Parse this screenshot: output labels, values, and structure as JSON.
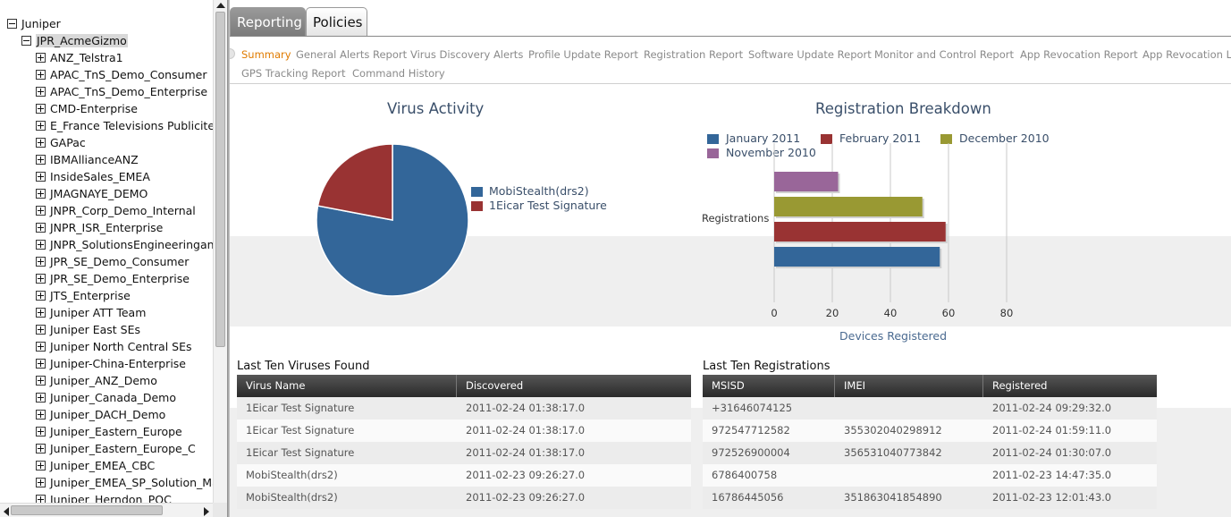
{
  "tree": {
    "root": "Juniper",
    "selected": "JPR_AcmeGizmo",
    "children": [
      "ANZ_Telstra1",
      "APAC_TnS_Demo_Consumer",
      "APAC_TnS_Demo_Enterprise",
      "CMD-Enterprise",
      "E_France Televisions Publicite",
      "GAPac",
      "IBMAllianceANZ",
      "InsideSales_EMEA",
      "JMAGNAYE_DEMO",
      "JNPR_Corp_Demo_Internal",
      "JNPR_ISR_Enterprise",
      "JNPR_SolutionsEngineeringand",
      "JPR_SE_Demo_Consumer",
      "JPR_SE_Demo_Enterprise",
      "JTS_Enterprise",
      "Juniper ATT Team",
      "Juniper East SEs",
      "Juniper North Central SEs",
      "Juniper-China-Enterprise",
      "Juniper_ANZ_Demo",
      "Juniper_Canada_Demo",
      "Juniper_DACH_Demo",
      "Juniper_Eastern_Europe",
      "Juniper_Eastern_Europe_C",
      "Juniper_EMEA_CBC",
      "Juniper_EMEA_SP_Solution_Ma",
      "Juniper_Herndon_POC"
    ]
  },
  "tabs": [
    "Reporting",
    "Policies"
  ],
  "subnav": {
    "row1": [
      "Summary",
      "General Alerts Report",
      "Virus Discovery Alerts",
      "Profile Update Report",
      "Registration Report",
      "Software Update Report",
      "Monitor and Control Report",
      "App Revocation Report",
      "App Revocation Li"
    ],
    "row2": [
      "GPS Tracking Report",
      "Command History"
    ],
    "active": "Summary"
  },
  "colors": {
    "blue": "#336699",
    "red": "#993333",
    "olive": "#999933",
    "purple": "#996699",
    "accent": "#e07b00"
  },
  "chart_data": [
    {
      "type": "pie",
      "title": "Virus Activity",
      "labels": [
        "MobiStealth(drs2)",
        "1Eicar Test Signature"
      ],
      "values": [
        78,
        22
      ],
      "colors": [
        "#336699",
        "#993333"
      ],
      "legend": "right"
    },
    {
      "type": "bar",
      "orientation": "horizontal",
      "title": "Registration Breakdown",
      "categories": [
        "Registrations"
      ],
      "series": [
        {
          "name": "January 2011",
          "values": [
            57
          ],
          "color": "#336699"
        },
        {
          "name": "February 2011",
          "values": [
            59
          ],
          "color": "#993333"
        },
        {
          "name": "December 2010",
          "values": [
            51
          ],
          "color": "#999933"
        },
        {
          "name": "November 2010",
          "values": [
            22
          ],
          "color": "#996699"
        }
      ],
      "xlabel": "Devices Registered",
      "ylabel": "",
      "xlim": [
        0,
        80
      ],
      "xticks": [
        0,
        20,
        40,
        60,
        80
      ],
      "grid": true,
      "legend": "top"
    }
  ],
  "viruses": {
    "title": "Last Ten Viruses Found",
    "columns": [
      "Virus Name",
      "Discovered"
    ],
    "rows": [
      [
        "1Eicar Test Signature",
        "2011-02-24 01:38:17.0"
      ],
      [
        "1Eicar Test Signature",
        "2011-02-24 01:38:17.0"
      ],
      [
        "1Eicar Test Signature",
        "2011-02-24 01:38:17.0"
      ],
      [
        "MobiStealth(drs2)",
        "2011-02-23 09:26:27.0"
      ],
      [
        "MobiStealth(drs2)",
        "2011-02-23 09:26:27.0"
      ]
    ]
  },
  "registrations": {
    "title": "Last Ten Registrations",
    "columns": [
      "MSISD",
      "IMEI",
      "Registered"
    ],
    "rows": [
      [
        "+31646074125",
        "",
        "2011-02-24 09:29:32.0"
      ],
      [
        "972547712582",
        "355302040298912",
        "2011-02-24 01:59:11.0"
      ],
      [
        "972526900004",
        "356531040773842",
        "2011-02-24 01:30:07.0"
      ],
      [
        "6786400758",
        "",
        "2011-02-23 14:47:35.0"
      ],
      [
        "16786445056",
        "351863041854890",
        "2011-02-23 12:01:43.0"
      ]
    ]
  }
}
